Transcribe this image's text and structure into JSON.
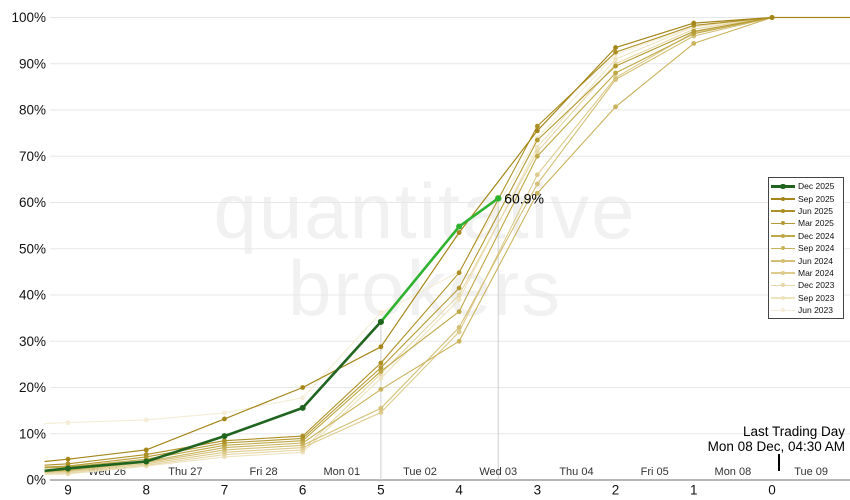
{
  "watermark": {
    "line1": "quantitative",
    "line2": "brokers"
  },
  "footer": {
    "line1": "Last Trading Day",
    "line2": "Mon 08 Dec, 04:30 AM"
  },
  "chart_data": {
    "type": "line",
    "title": "",
    "xlabel": "",
    "ylabel": "",
    "ylim": [
      0,
      100
    ],
    "grid": "horizontal",
    "legend_position": "right",
    "y_axis": {
      "ticks": [
        0,
        10,
        20,
        30,
        40,
        50,
        60,
        70,
        80,
        90,
        100
      ],
      "tick_suffix": "%"
    },
    "x_axis": {
      "ticks": [
        9,
        8,
        7,
        6,
        5,
        4,
        3,
        2,
        1,
        0
      ],
      "day_labels": [
        "Wed 26",
        "Thu 27",
        "Fri 28",
        "Mon 01",
        "Tue 02",
        "Wed 03",
        "Thu 04",
        "Fri 05",
        "Mon 08",
        "Tue 09"
      ],
      "day_label_centers": [
        8.5,
        7.5,
        6.5,
        5.5,
        4.5,
        3.5,
        2.5,
        1.5,
        0.5,
        -0.5
      ]
    },
    "annotation": {
      "label": "60.9%",
      "day": 3.5,
      "value": 60.9
    },
    "droplines": [
      {
        "day": 5,
        "value": 34.2
      },
      {
        "day": 3.5,
        "value": 60.9
      }
    ],
    "last_trading_marker_day": -0.08,
    "series": [
      {
        "name": "Dec 2025",
        "color": "#206420",
        "width": 2.6,
        "legend": true,
        "live": false,
        "points": [
          [
            9.3,
            2
          ],
          [
            9,
            2.5
          ],
          [
            8,
            4
          ],
          [
            7,
            9.5
          ],
          [
            6,
            15.6
          ],
          [
            5,
            34.2
          ]
        ]
      },
      {
        "name": "Dec 2025 live",
        "color": "#2eb230",
        "width": 2.6,
        "legend": false,
        "live": true,
        "points": [
          [
            5,
            34.2
          ],
          [
            4,
            54.8
          ],
          [
            3.5,
            60.9
          ]
        ]
      },
      {
        "name": "Sep 2025",
        "color": "#a5861a",
        "width": 1.2,
        "legend": true,
        "live": false,
        "points": [
          [
            9.3,
            4
          ],
          [
            9,
            4.5
          ],
          [
            8,
            6.5
          ],
          [
            7,
            13.2
          ],
          [
            6,
            20
          ],
          [
            5,
            28.8
          ],
          [
            4,
            53.5
          ],
          [
            3,
            75.5
          ],
          [
            2,
            93.5
          ],
          [
            1,
            98.8
          ],
          [
            0,
            100
          ],
          [
            -1,
            100
          ]
        ]
      },
      {
        "name": "Jun 2025",
        "color": "#ad9025",
        "width": 1.1,
        "legend": true,
        "live": false,
        "points": [
          [
            9.3,
            3.2
          ],
          [
            9,
            3.5
          ],
          [
            8,
            5.5
          ],
          [
            7,
            8.5
          ],
          [
            6,
            9.5
          ],
          [
            5,
            25.3
          ],
          [
            4,
            44.8
          ],
          [
            3,
            76.5
          ],
          [
            2,
            92.5
          ],
          [
            1,
            98.3
          ],
          [
            0,
            100
          ],
          [
            -1,
            100
          ]
        ]
      },
      {
        "name": "Mar 2025",
        "color": "#b59a33",
        "width": 1.1,
        "legend": true,
        "live": false,
        "points": [
          [
            9.3,
            2.8
          ],
          [
            9,
            3
          ],
          [
            8,
            5
          ],
          [
            7,
            8
          ],
          [
            6,
            9
          ],
          [
            5,
            24.3
          ],
          [
            4,
            41.5
          ],
          [
            3,
            73.5
          ],
          [
            2,
            89.5
          ],
          [
            1,
            97
          ],
          [
            0,
            100
          ],
          [
            -1,
            100
          ]
        ]
      },
      {
        "name": "Dec 2024",
        "color": "#bfa847",
        "width": 1.1,
        "legend": true,
        "live": false,
        "points": [
          [
            9.3,
            2.6
          ],
          [
            9,
            2.8
          ],
          [
            8,
            4.5
          ],
          [
            7,
            7.5
          ],
          [
            6,
            8.5
          ],
          [
            5,
            23.5
          ],
          [
            4,
            36.4
          ],
          [
            3,
            70
          ],
          [
            2,
            88
          ],
          [
            1,
            96.5
          ],
          [
            0,
            100
          ],
          [
            -1,
            100
          ]
        ]
      },
      {
        "name": "Sep 2024",
        "color": "#c9b25c",
        "width": 1.1,
        "legend": true,
        "live": false,
        "points": [
          [
            9.3,
            2
          ],
          [
            9,
            2.2
          ],
          [
            8,
            4
          ],
          [
            7,
            7
          ],
          [
            6,
            8
          ],
          [
            5,
            19.6
          ],
          [
            4,
            30
          ],
          [
            3,
            62
          ],
          [
            2,
            80.7
          ],
          [
            1,
            94.4
          ],
          [
            0,
            100
          ],
          [
            -1,
            100
          ]
        ]
      },
      {
        "name": "Jun 2024",
        "color": "#d3bf75",
        "width": 1.1,
        "legend": true,
        "live": false,
        "points": [
          [
            9.3,
            1.8
          ],
          [
            9,
            2
          ],
          [
            8,
            3.8
          ],
          [
            7,
            6.5
          ],
          [
            6,
            7.5
          ],
          [
            5,
            15.5
          ],
          [
            4,
            33
          ],
          [
            3,
            64
          ],
          [
            2,
            86.6
          ],
          [
            1,
            96
          ],
          [
            0,
            100
          ],
          [
            -1,
            100
          ]
        ]
      },
      {
        "name": "Mar 2024",
        "color": "#ddcb8d",
        "width": 1.1,
        "legend": true,
        "live": false,
        "points": [
          [
            9.3,
            1.6
          ],
          [
            9,
            1.8
          ],
          [
            8,
            3.5
          ],
          [
            7,
            6
          ],
          [
            6,
            7
          ],
          [
            5,
            14.6
          ],
          [
            4,
            32
          ],
          [
            3,
            66
          ],
          [
            2,
            87
          ],
          [
            1,
            96.8
          ],
          [
            0,
            100
          ],
          [
            -1,
            100
          ]
        ]
      },
      {
        "name": "Dec 2023",
        "color": "#e6d7a6",
        "width": 1.1,
        "legend": true,
        "live": false,
        "points": [
          [
            9.3,
            1.4
          ],
          [
            9,
            1.5
          ],
          [
            8,
            3.2
          ],
          [
            7,
            5.5
          ],
          [
            6,
            6.5
          ],
          [
            5,
            23
          ],
          [
            4,
            40
          ],
          [
            3,
            71
          ],
          [
            2,
            90
          ],
          [
            1,
            97.5
          ],
          [
            0,
            100
          ],
          [
            -1,
            100
          ]
        ]
      },
      {
        "name": "Sep 2023",
        "color": "#eee3c0",
        "width": 1.1,
        "legend": true,
        "live": false,
        "points": [
          [
            9.3,
            1.2
          ],
          [
            9,
            1.3
          ],
          [
            8,
            3
          ],
          [
            7,
            5
          ],
          [
            6,
            6
          ],
          [
            5,
            22
          ],
          [
            4,
            39
          ],
          [
            3,
            72
          ],
          [
            2,
            91
          ],
          [
            1,
            98
          ],
          [
            0,
            100
          ],
          [
            -1,
            100
          ]
        ]
      },
      {
        "name": "Jun 2023",
        "color": "#f4ecd6",
        "width": 1.1,
        "legend": true,
        "live": false,
        "points": [
          [
            9.3,
            12.2
          ],
          [
            9,
            12.4
          ],
          [
            8,
            13
          ],
          [
            7,
            14.5
          ],
          [
            6,
            17.8
          ],
          [
            5,
            36.2
          ],
          [
            4,
            45
          ],
          [
            3,
            74
          ],
          [
            2,
            92
          ],
          [
            1,
            98.2
          ],
          [
            0,
            100
          ],
          [
            -1,
            100
          ]
        ]
      }
    ]
  }
}
